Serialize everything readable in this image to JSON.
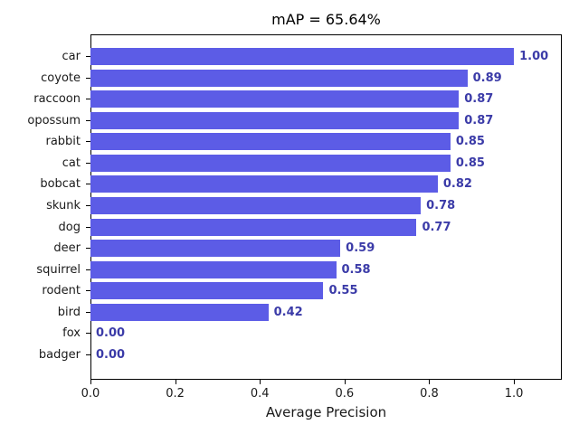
{
  "title": "mAP = 65.64%",
  "colors": {
    "bar": "#5c5ce6",
    "value_label": "#3b3ba8",
    "axis": "#000000",
    "background": "#ffffff"
  },
  "chart_data": {
    "type": "bar",
    "orientation": "horizontal",
    "title": "mAP = 65.64%",
    "xlabel": "Average Precision",
    "ylabel": "",
    "categories": [
      "car",
      "coyote",
      "raccoon",
      "opossum",
      "rabbit",
      "cat",
      "bobcat",
      "skunk",
      "dog",
      "deer",
      "squirrel",
      "rodent",
      "bird",
      "fox",
      "badger"
    ],
    "values": [
      1.0,
      0.89,
      0.87,
      0.87,
      0.85,
      0.85,
      0.82,
      0.78,
      0.77,
      0.59,
      0.58,
      0.55,
      0.42,
      0.0,
      0.0
    ],
    "value_labels": [
      "1.00",
      "0.89",
      "0.87",
      "0.87",
      "0.85",
      "0.85",
      "0.82",
      "0.78",
      "0.77",
      "0.59",
      "0.58",
      "0.55",
      "0.42",
      "0.00",
      "0.00"
    ],
    "xlim": [
      0,
      1.113
    ],
    "xticks": [
      0.0,
      0.2,
      0.4,
      0.6,
      0.8,
      1.0
    ],
    "xtick_labels": [
      "0.0",
      "0.2",
      "0.4",
      "0.6",
      "0.8",
      "1.0"
    ],
    "grid": false,
    "legend": null,
    "bar_order": "top-to-bottom"
  }
}
